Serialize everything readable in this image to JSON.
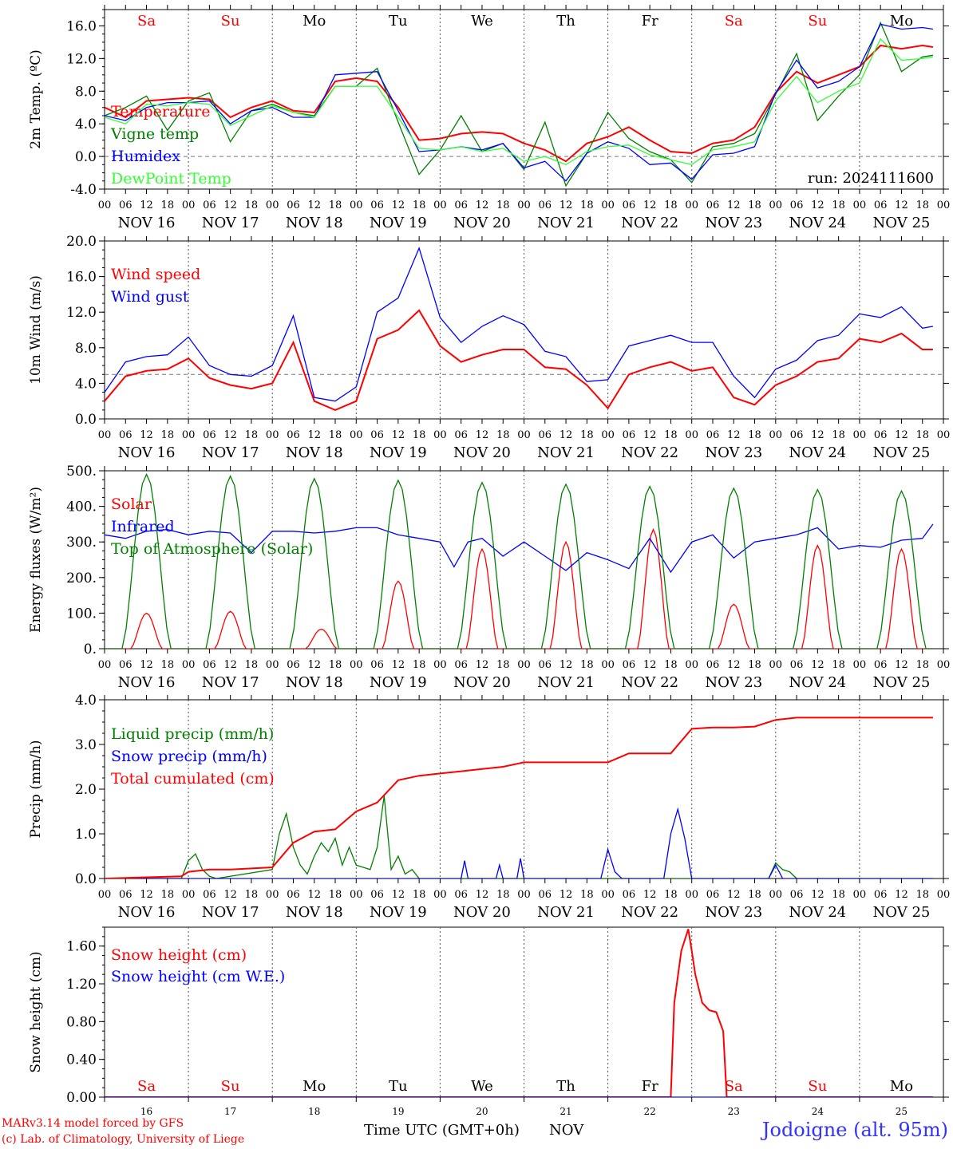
{
  "run_label": "run: 2024111600",
  "footer": {
    "credit_line1": "MARv3.14 model forced by GFS",
    "credit_line2": "(c) Lab. of Climatology, University of Liege",
    "x_title": "Time UTC (GMT+0h)",
    "month": "NOV",
    "station": "Jodoigne (alt. 95m)"
  },
  "colors": {
    "red": "#ff0000",
    "green": "#008000",
    "blue": "#0000ff",
    "light_green": "#33ff33",
    "weekend": "#ff0000",
    "weekday": "#000000",
    "station": "#3333ff"
  },
  "days": [
    {
      "abbr": "Sa",
      "date": "NOV 16",
      "num": "16",
      "weekend": true
    },
    {
      "abbr": "Su",
      "date": "NOV 17",
      "num": "17",
      "weekend": true
    },
    {
      "abbr": "Mo",
      "date": "NOV 18",
      "num": "18",
      "weekend": false
    },
    {
      "abbr": "Tu",
      "date": "NOV 19",
      "num": "19",
      "weekend": false
    },
    {
      "abbr": "We",
      "date": "NOV 20",
      "num": "20",
      "weekend": false
    },
    {
      "abbr": "Th",
      "date": "NOV 21",
      "num": "21",
      "weekend": false
    },
    {
      "abbr": "Fr",
      "date": "NOV 22",
      "num": "22",
      "weekend": false
    },
    {
      "abbr": "Sa",
      "date": "NOV 23",
      "num": "23",
      "weekend": true
    },
    {
      "abbr": "Su",
      "date": "NOV 24",
      "num": "24",
      "weekend": true
    },
    {
      "abbr": "Mo",
      "date": "NOV 25",
      "num": "25",
      "weekend": false
    }
  ],
  "hour_ticks": [
    "00",
    "06",
    "12",
    "18"
  ],
  "chart_data": [
    {
      "type": "line",
      "ylabel": "2m Temp. (ºC)",
      "ylim": [
        -4,
        18
      ],
      "yticks": [
        "-4.0",
        "0.0",
        "4.0",
        "8.0",
        "12.0",
        "16.0"
      ],
      "ytick_values": [
        -4,
        0,
        4,
        8,
        12,
        16
      ],
      "reference_line": 0,
      "x_unit": "hours since NOV 16 00 UTC",
      "series": [
        {
          "name": "Temperature",
          "color": "red",
          "x": [
            0,
            6,
            12,
            18,
            24,
            30,
            36,
            42,
            48,
            54,
            60,
            66,
            72,
            78,
            84,
            90,
            96,
            102,
            108,
            114,
            120,
            126,
            132,
            138,
            144,
            150,
            156,
            162,
            168,
            174,
            180,
            186,
            192,
            198,
            204,
            210,
            216,
            222,
            228,
            234,
            237
          ],
          "y": [
            6.0,
            4.8,
            6.8,
            7.0,
            7.2,
            7.0,
            4.8,
            6.0,
            6.8,
            5.6,
            5.4,
            9.2,
            9.6,
            9.2,
            6.0,
            2.0,
            2.2,
            2.8,
            3.0,
            2.8,
            1.6,
            0.8,
            -0.6,
            1.6,
            2.4,
            3.6,
            2.0,
            0.6,
            0.4,
            1.6,
            2.0,
            3.6,
            7.8,
            10.4,
            9.0,
            10.0,
            11.0,
            13.6,
            13.2,
            13.6,
            13.4
          ]
        },
        {
          "name": "Vigne temp",
          "color": "green",
          "x": [
            0,
            6,
            12,
            18,
            24,
            30,
            36,
            42,
            48,
            54,
            60,
            66,
            72,
            78,
            84,
            90,
            96,
            102,
            108,
            114,
            120,
            126,
            132,
            138,
            144,
            150,
            156,
            162,
            168,
            174,
            180,
            186,
            192,
            198,
            204,
            210,
            216,
            222,
            228,
            234,
            237
          ],
          "y": [
            5.0,
            6.0,
            7.4,
            3.2,
            6.8,
            7.8,
            1.8,
            5.6,
            6.4,
            5.4,
            5.0,
            8.6,
            8.6,
            10.8,
            4.2,
            -2.2,
            0.8,
            5.0,
            0.6,
            1.6,
            -1.6,
            4.2,
            -3.6,
            0.4,
            5.4,
            2.2,
            0.6,
            -0.4,
            -3.2,
            1.2,
            1.6,
            2.8,
            7.6,
            12.6,
            4.4,
            7.4,
            10.0,
            16.4,
            10.4,
            12.2,
            12.4
          ]
        },
        {
          "name": "Humidex",
          "color": "blue",
          "x": [
            0,
            6,
            12,
            18,
            24,
            30,
            36,
            42,
            48,
            54,
            60,
            66,
            72,
            78,
            84,
            90,
            96,
            102,
            108,
            114,
            120,
            126,
            132,
            138,
            144,
            150,
            156,
            162,
            168,
            174,
            180,
            186,
            192,
            198,
            204,
            210,
            216,
            222,
            228,
            234,
            237
          ],
          "y": [
            5.0,
            4.4,
            6.0,
            6.6,
            6.6,
            6.8,
            4.0,
            5.6,
            6.0,
            4.8,
            4.8,
            10.0,
            10.2,
            10.4,
            5.6,
            0.6,
            0.8,
            1.2,
            0.8,
            1.6,
            -1.4,
            -0.6,
            -3.0,
            0.4,
            1.8,
            1.0,
            -1.0,
            -0.8,
            -2.8,
            0.2,
            0.4,
            1.2,
            7.8,
            11.8,
            8.4,
            9.2,
            11.0,
            16.2,
            15.6,
            15.8,
            15.6
          ]
        },
        {
          "name": "DewPoint Temp",
          "color": "light_green",
          "x": [
            0,
            6,
            12,
            18,
            24,
            30,
            36,
            42,
            48,
            54,
            60,
            66,
            72,
            78,
            84,
            90,
            96,
            102,
            108,
            114,
            120,
            126,
            132,
            138,
            144,
            150,
            156,
            162,
            168,
            174,
            180,
            186,
            192,
            198,
            204,
            210,
            216,
            222,
            228,
            234,
            237
          ],
          "y": [
            4.8,
            4.0,
            6.4,
            6.2,
            6.6,
            6.4,
            3.8,
            5.0,
            6.2,
            5.4,
            4.8,
            8.6,
            8.6,
            8.6,
            4.8,
            1.0,
            0.8,
            1.2,
            0.6,
            1.0,
            -0.6,
            0.0,
            -1.0,
            0.6,
            1.2,
            1.4,
            0.2,
            -0.4,
            -1.0,
            0.8,
            1.2,
            1.8,
            6.8,
            9.8,
            6.6,
            8.0,
            9.0,
            14.4,
            11.8,
            12.0,
            12.2
          ]
        }
      ]
    },
    {
      "type": "line",
      "ylabel": "10m Wind (m/s)",
      "ylim": [
        0,
        20
      ],
      "yticks": [
        "0.0",
        "4.0",
        "8.0",
        "12.0",
        "16.0",
        "20.0"
      ],
      "ytick_values": [
        0,
        4,
        8,
        12,
        16,
        20
      ],
      "reference_line": 5,
      "x_unit": "hours since NOV 16 00 UTC",
      "series": [
        {
          "name": "Wind speed",
          "color": "red",
          "x": [
            0,
            6,
            12,
            18,
            24,
            30,
            36,
            42,
            48,
            54,
            60,
            66,
            72,
            78,
            84,
            90,
            96,
            102,
            108,
            114,
            120,
            126,
            132,
            138,
            144,
            150,
            156,
            162,
            168,
            174,
            180,
            186,
            192,
            198,
            204,
            210,
            216,
            222,
            228,
            234,
            237
          ],
          "y": [
            2.0,
            4.8,
            5.4,
            5.6,
            6.8,
            4.6,
            3.8,
            3.4,
            4.0,
            8.6,
            2.0,
            1.0,
            2.0,
            9.0,
            10.0,
            12.2,
            8.2,
            6.4,
            7.2,
            7.8,
            7.8,
            5.8,
            5.6,
            3.8,
            1.2,
            5.0,
            5.8,
            6.4,
            5.4,
            5.8,
            2.4,
            1.6,
            3.8,
            4.8,
            6.4,
            6.8,
            9.0,
            8.6,
            9.6,
            7.8,
            7.8
          ]
        },
        {
          "name": "Wind gust",
          "color": "blue",
          "x": [
            0,
            6,
            12,
            18,
            24,
            30,
            36,
            42,
            48,
            54,
            60,
            66,
            72,
            78,
            84,
            90,
            96,
            102,
            108,
            114,
            120,
            126,
            132,
            138,
            144,
            150,
            156,
            162,
            168,
            174,
            180,
            186,
            192,
            198,
            204,
            210,
            216,
            222,
            228,
            234,
            237
          ],
          "y": [
            3.0,
            6.4,
            7.0,
            7.2,
            9.2,
            6.0,
            5.0,
            4.8,
            6.0,
            11.6,
            2.4,
            2.0,
            3.6,
            12.0,
            13.6,
            19.2,
            11.4,
            8.6,
            10.4,
            11.6,
            10.6,
            7.6,
            7.0,
            4.2,
            4.4,
            8.2,
            8.8,
            9.4,
            8.6,
            8.6,
            4.8,
            2.4,
            5.6,
            6.6,
            8.8,
            9.4,
            11.8,
            11.4,
            12.6,
            10.2,
            10.4
          ]
        }
      ]
    },
    {
      "type": "line",
      "ylabel": "Energy fluxes (W/m²)",
      "ylim": [
        0,
        500
      ],
      "yticks": [
        "0.",
        "100.",
        "200.",
        "300.",
        "400.",
        "500."
      ],
      "ytick_values": [
        0,
        100,
        200,
        300,
        400,
        500
      ],
      "x_unit": "hours since NOV 16 00 UTC",
      "series": [
        {
          "name": "Solar",
          "color": "red",
          "day_peaks": [
            100,
            105,
            55,
            190,
            280,
            300,
            335,
            125,
            290,
            280
          ],
          "day_peak_hour": [
            12,
            12,
            14,
            12,
            12,
            12,
            13,
            12,
            12,
            12
          ]
        },
        {
          "name": "Infrared",
          "color": "blue",
          "x": [
            0,
            6,
            12,
            18,
            24,
            30,
            36,
            42,
            48,
            54,
            60,
            66,
            72,
            78,
            84,
            90,
            96,
            100,
            104,
            108,
            114,
            120,
            126,
            132,
            138,
            144,
            150,
            156,
            162,
            168,
            174,
            180,
            186,
            192,
            198,
            204,
            210,
            216,
            222,
            228,
            234,
            237
          ],
          "y": [
            320,
            310,
            330,
            335,
            320,
            330,
            325,
            270,
            330,
            330,
            325,
            330,
            340,
            340,
            320,
            310,
            300,
            230,
            300,
            310,
            260,
            300,
            260,
            220,
            270,
            250,
            225,
            310,
            215,
            300,
            320,
            255,
            300,
            310,
            320,
            340,
            280,
            290,
            285,
            305,
            310,
            350
          ]
        },
        {
          "name": "Top of Atmosphere (Solar)",
          "color": "green",
          "day_peaks": [
            490,
            485,
            478,
            473,
            467,
            462,
            456,
            451,
            447,
            443
          ],
          "day_peak_hour": [
            12,
            12,
            12,
            12,
            12,
            12,
            12,
            12,
            12,
            12
          ]
        }
      ]
    },
    {
      "type": "line",
      "ylabel": "Precip (mm/h)",
      "ylim": [
        0,
        4
      ],
      "yticks": [
        "0.0",
        "1.0",
        "2.0",
        "3.0",
        "4.0"
      ],
      "ytick_values": [
        0,
        1,
        2,
        3,
        4
      ],
      "x_unit": "hours since NOV 16 00 UTC",
      "series": [
        {
          "name": "Liquid precip (mm/h)",
          "color": "green",
          "x": [
            0,
            22,
            24,
            26,
            28,
            30,
            32,
            48,
            50,
            52,
            54,
            56,
            58,
            60,
            62,
            64,
            66,
            68,
            70,
            72,
            74,
            76,
            78,
            80,
            82,
            84,
            86,
            88,
            90,
            92,
            94,
            96,
            190,
            192,
            194,
            196,
            198,
            237
          ],
          "y": [
            0,
            0,
            0.4,
            0.55,
            0.2,
            0.05,
            0,
            0.2,
            1.0,
            1.45,
            0.7,
            0.3,
            0.1,
            0.5,
            0.8,
            0.6,
            0.9,
            0.3,
            0.7,
            0.3,
            0.25,
            0.2,
            0.7,
            1.85,
            0.2,
            0.5,
            0.1,
            0.2,
            0,
            0,
            0,
            0,
            0,
            0.35,
            0.2,
            0.15,
            0,
            0
          ]
        },
        {
          "name": "Snow precip (mm/h)",
          "color": "blue",
          "x": [
            0,
            102,
            103,
            104,
            112,
            113,
            114,
            118,
            119,
            120,
            142,
            144,
            146,
            148,
            160,
            162,
            164,
            166,
            168,
            190,
            192,
            194,
            237
          ],
          "y": [
            0,
            0,
            0.4,
            0,
            0,
            0.3,
            0,
            0,
            0.45,
            0,
            0,
            0.65,
            0.15,
            0,
            0,
            1.0,
            1.55,
            0.9,
            0,
            0,
            0.3,
            0,
            0
          ]
        },
        {
          "name": "Total cumulated (cm)",
          "color": "red",
          "x": [
            0,
            22,
            24,
            30,
            36,
            48,
            54,
            60,
            66,
            72,
            78,
            84,
            90,
            96,
            102,
            108,
            114,
            120,
            130,
            144,
            150,
            156,
            162,
            168,
            174,
            180,
            186,
            192,
            198,
            210,
            237
          ],
          "y": [
            0,
            0.05,
            0.15,
            0.2,
            0.2,
            0.25,
            0.8,
            1.05,
            1.1,
            1.5,
            1.7,
            2.2,
            2.3,
            2.35,
            2.4,
            2.45,
            2.5,
            2.6,
            2.6,
            2.6,
            2.8,
            2.8,
            2.8,
            3.35,
            3.38,
            3.38,
            3.4,
            3.55,
            3.6,
            3.6,
            3.6
          ]
        }
      ]
    },
    {
      "type": "line",
      "ylabel": "Snow height (cm)",
      "ylim": [
        0,
        1.8
      ],
      "yticks": [
        "0.00",
        "0.40",
        "0.80",
        "1.20",
        "1.60"
      ],
      "ytick_values": [
        0,
        0.4,
        0.8,
        1.2,
        1.6
      ],
      "x_unit": "hours since NOV 16 00 UTC",
      "series": [
        {
          "name": "Snow height (cm)",
          "color": "red",
          "x": [
            0,
            162,
            163,
            165,
            167,
            168,
            169,
            171,
            173,
            175,
            177,
            178,
            237
          ],
          "y": [
            0,
            0,
            1.0,
            1.55,
            1.78,
            1.55,
            1.3,
            1.0,
            0.92,
            0.9,
            0.7,
            0,
            0
          ]
        },
        {
          "name": "Snow height (cm W.E.)",
          "color": "blue",
          "x": [
            0,
            237
          ],
          "y": [
            0,
            0
          ]
        }
      ]
    }
  ]
}
